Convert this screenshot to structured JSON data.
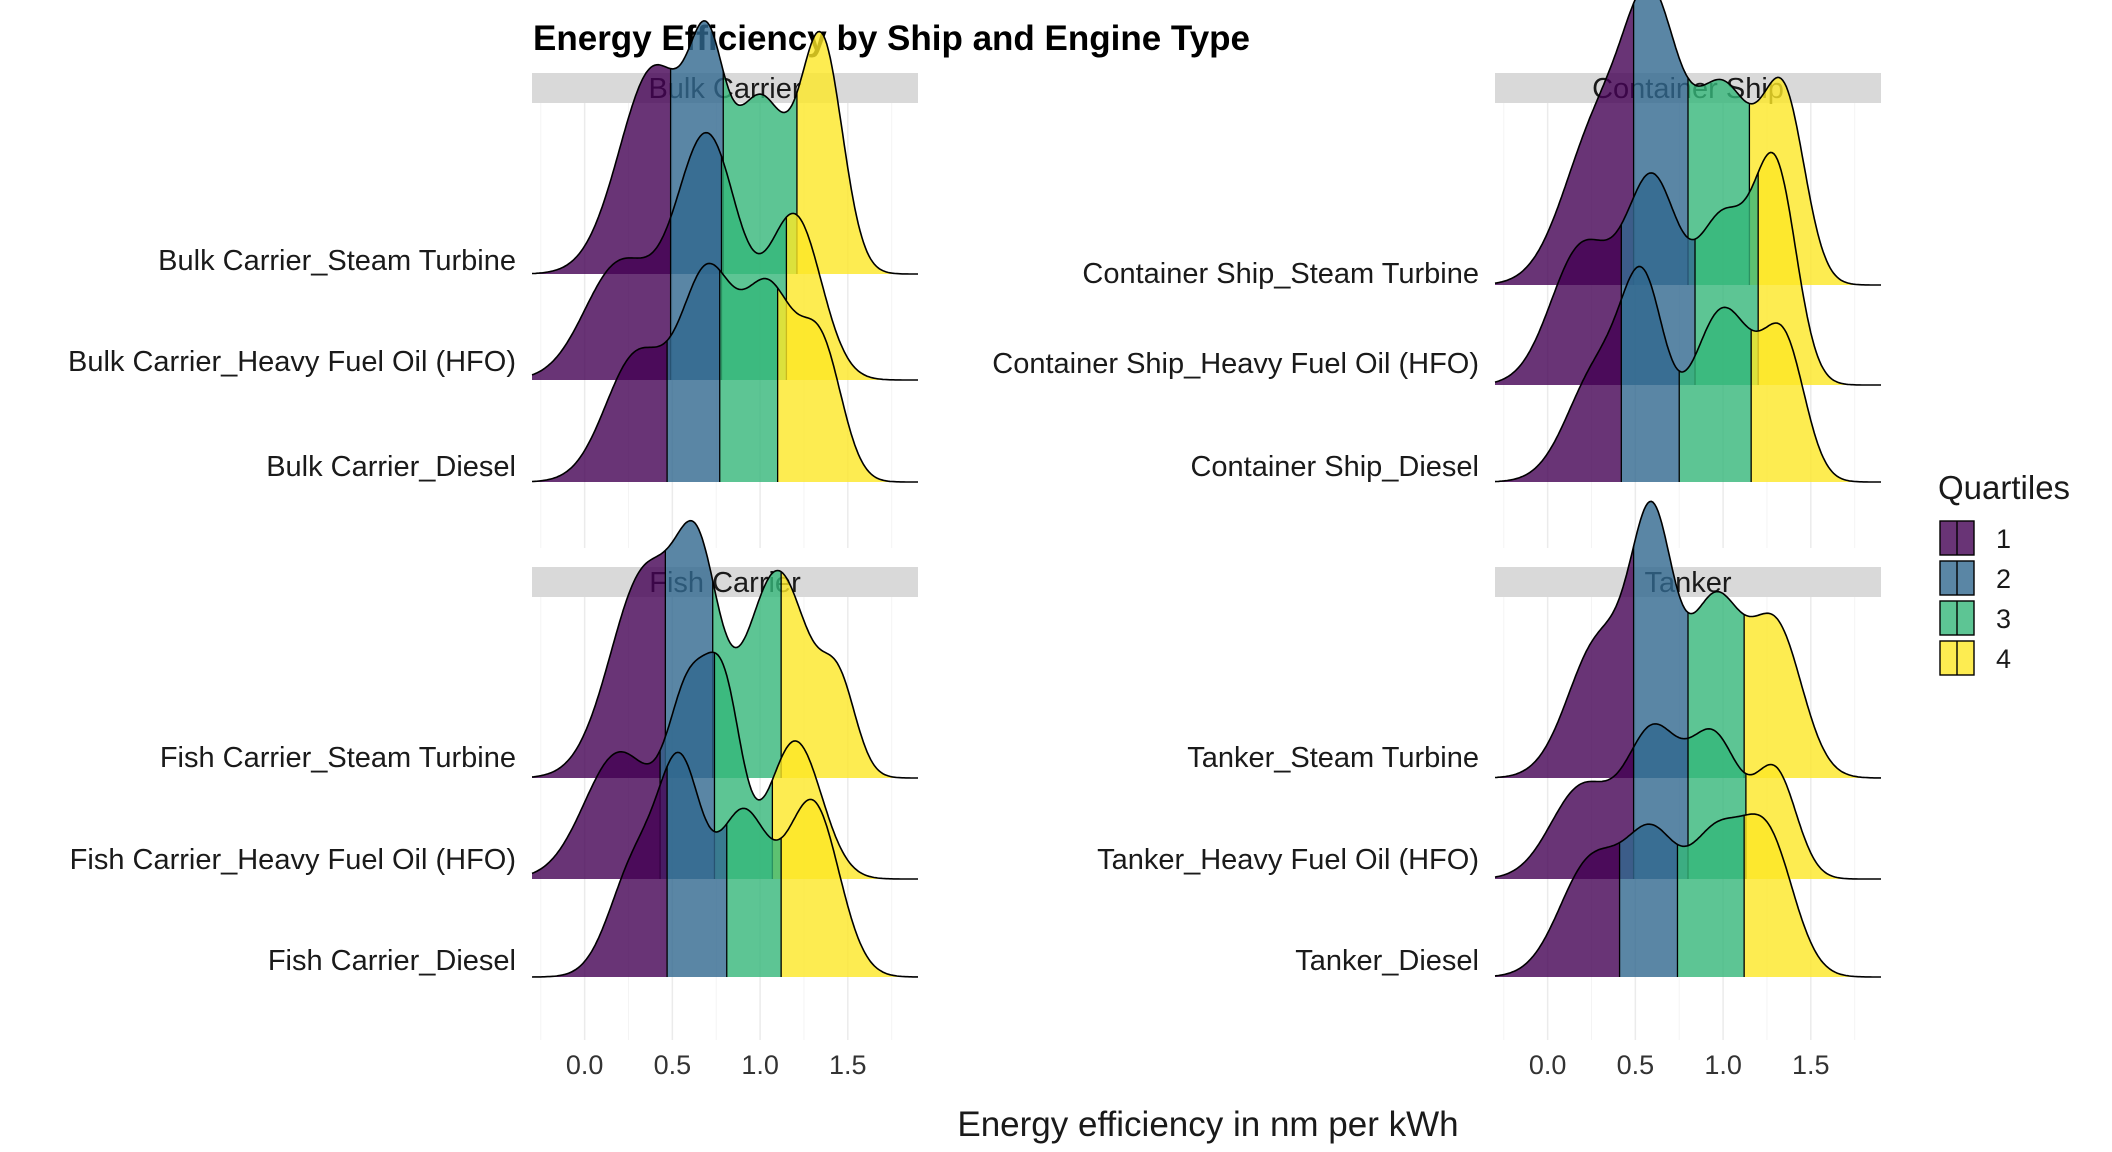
{
  "chart_data": {
    "type": "ridgeline",
    "title": "Energy Efficiency by Ship and Engine Type",
    "xlabel": "Energy efficiency in nm per kWh",
    "xlim": [
      -0.3,
      1.9
    ],
    "x_ticks": [
      0.0,
      0.5,
      1.0,
      1.5
    ],
    "x_tick_labels": [
      "0.0",
      "0.5",
      "1.0",
      "1.5"
    ],
    "legend": {
      "title": "Quartiles",
      "position": "right",
      "entries": [
        {
          "label": "1",
          "color": "#440154"
        },
        {
          "label": "2",
          "color": "#31688E"
        },
        {
          "label": "3",
          "color": "#35B779"
        },
        {
          "label": "4",
          "color": "#FDE725"
        }
      ]
    },
    "panels": [
      {
        "facet": "Bulk Carrier",
        "rows": [
          {
            "label": "Bulk Carrier_Diesel",
            "quartiles": [
              0.47,
              0.77,
              1.1
            ],
            "peaks": [
              [
                0.3,
                0.55,
                0.18
              ],
              [
                0.7,
                0.85,
                0.15
              ],
              [
                1.05,
                0.8,
                0.15
              ],
              [
                1.35,
                0.55,
                0.12
              ]
            ]
          },
          {
            "label": "Bulk Carrier_Heavy Fuel Oil (HFO)",
            "quartiles": [
              0.49,
              0.78,
              1.15
            ],
            "peaks": [
              [
                0.2,
                0.5,
                0.2
              ],
              [
                0.7,
                1.05,
                0.18
              ],
              [
                1.2,
                0.7,
                0.15
              ]
            ]
          },
          {
            "label": "Bulk Carrier_Steam Turbine",
            "quartiles": [
              0.49,
              0.79,
              1.21
            ],
            "peaks": [
              [
                0.4,
                0.9,
                0.2
              ],
              [
                0.7,
                0.7,
                0.1
              ],
              [
                1.0,
                0.75,
                0.15
              ],
              [
                1.35,
                1.0,
                0.12
              ]
            ]
          }
        ]
      },
      {
        "facet": "Container Ship",
        "rows": [
          {
            "label": "Container Ship_Diesel",
            "quartiles": [
              0.42,
              0.75,
              1.16
            ],
            "peaks": [
              [
                0.3,
                0.5,
                0.18
              ],
              [
                0.55,
                0.7,
                0.12
              ],
              [
                1.0,
                0.75,
                0.18
              ],
              [
                1.35,
                0.55,
                0.12
              ]
            ]
          },
          {
            "label": "Container Ship_Heavy Fuel Oil (HFO)",
            "quartiles": [
              0.42,
              0.84,
              1.2
            ],
            "peaks": [
              [
                0.2,
                0.6,
                0.18
              ],
              [
                0.6,
                0.85,
                0.15
              ],
              [
                1.0,
                0.7,
                0.15
              ],
              [
                1.3,
                0.9,
                0.12
              ]
            ]
          },
          {
            "label": "Container Ship_Steam Turbine",
            "quartiles": [
              0.49,
              0.8,
              1.15
            ],
            "peaks": [
              [
                0.3,
                0.7,
                0.2
              ],
              [
                0.6,
                1.0,
                0.15
              ],
              [
                1.0,
                0.85,
                0.18
              ],
              [
                1.35,
                0.75,
                0.12
              ]
            ]
          }
        ]
      },
      {
        "facet": "Fish Carrier",
        "rows": [
          {
            "label": "Fish Carrier_Diesel",
            "quartiles": [
              0.47,
              0.81,
              1.12
            ],
            "peaks": [
              [
                0.3,
                0.5,
                0.15
              ],
              [
                0.55,
                0.8,
                0.12
              ],
              [
                0.9,
                0.7,
                0.15
              ],
              [
                1.3,
                0.75,
                0.15
              ]
            ]
          },
          {
            "label": "Fish Carrier_Heavy Fuel Oil (HFO)",
            "quartiles": [
              0.43,
              0.74,
              1.07
            ],
            "peaks": [
              [
                0.2,
                0.55,
                0.2
              ],
              [
                0.6,
                0.75,
                0.12
              ],
              [
                0.8,
                0.7,
                0.1
              ],
              [
                1.2,
                0.6,
                0.15
              ]
            ]
          },
          {
            "label": "Fish Carrier_Steam Turbine",
            "quartiles": [
              0.46,
              0.73,
              1.12
            ],
            "peaks": [
              [
                0.35,
                0.9,
                0.2
              ],
              [
                0.65,
                0.75,
                0.12
              ],
              [
                1.1,
                0.9,
                0.18
              ],
              [
                1.45,
                0.35,
                0.1
              ]
            ]
          }
        ]
      },
      {
        "facet": "Tanker",
        "rows": [
          {
            "label": "Tanker_Diesel",
            "quartiles": [
              0.41,
              0.74,
              1.12
            ],
            "peaks": [
              [
                0.25,
                0.5,
                0.18
              ],
              [
                0.6,
                0.55,
                0.15
              ],
              [
                0.95,
                0.55,
                0.15
              ],
              [
                1.25,
                0.6,
                0.15
              ]
            ]
          },
          {
            "label": "Tanker_Heavy Fuel Oil (HFO)",
            "quartiles": [
              0.49,
              0.8,
              1.13
            ],
            "peaks": [
              [
                0.2,
                0.4,
                0.18
              ],
              [
                0.6,
                0.6,
                0.15
              ],
              [
                0.95,
                0.6,
                0.15
              ],
              [
                1.3,
                0.45,
                0.12
              ]
            ]
          },
          {
            "label": "Tanker_Steam Turbine",
            "quartiles": [
              0.49,
              0.8,
              1.12
            ],
            "peaks": [
              [
                0.3,
                0.6,
                0.18
              ],
              [
                0.6,
                1.0,
                0.12
              ],
              [
                0.95,
                0.75,
                0.15
              ],
              [
                1.3,
                0.65,
                0.15
              ]
            ]
          }
        ]
      }
    ]
  }
}
